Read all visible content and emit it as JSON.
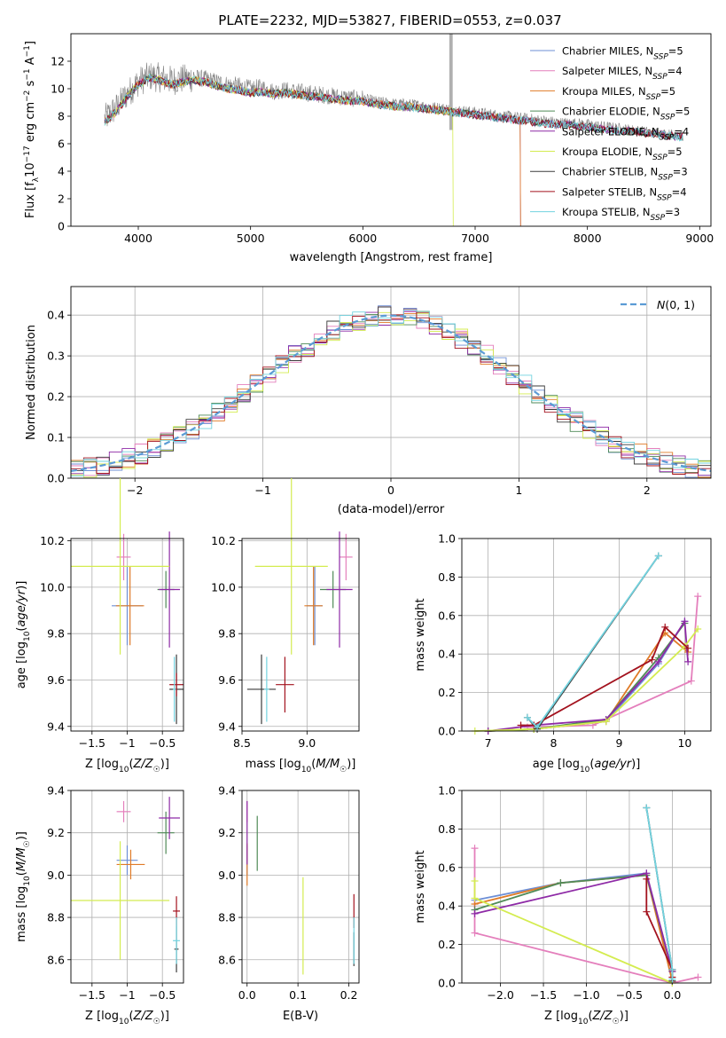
{
  "figure_title": "PLATE=2232, MJD=53827, FIBERID=0553, z=0.037",
  "colors": {
    "Chabrier MILES": "#6d8fd6",
    "Salpeter MILES": "#e47fbc",
    "Kroupa MILES": "#e07b27",
    "Chabrier ELODIE": "#4f8a57",
    "Salpeter ELODIE": "#8e2aa6",
    "Kroupa ELODIE": "#d4ec50",
    "Chabrier STELIB": "#3b3b3b",
    "Salpeter STELIB": "#a3121e",
    "Kroupa STELIB": "#72d3df",
    "data": "#808080",
    "normal_curve": "#5b9bd5"
  },
  "chart_data": [
    {
      "id": "spectrum",
      "type": "line",
      "title": "PLATE=2232, MJD=53827, FIBERID=0553, z=0.037",
      "xlabel": "wavelength [Angstrom, rest frame]",
      "ylabel": "Flux [f_λ 10^-17 erg cm^-2 s^-1 A^-1]",
      "xlim": [
        3400,
        9100
      ],
      "ylim": [
        0,
        14
      ],
      "xticks": [
        4000,
        5000,
        6000,
        7000,
        8000,
        9000
      ],
      "yticks": [
        0,
        2,
        4,
        6,
        8,
        10,
        12
      ],
      "grid": false,
      "legend_position": "right",
      "legend": [
        {
          "text": "Chabrier MILES, N_SSP=5",
          "main": "Chabrier MILES, N",
          "sub": "SSP",
          "tail": "=5"
        },
        {
          "text": "Salpeter MILES, N_SSP=4",
          "main": "Salpeter MILES, N",
          "sub": "SSP",
          "tail": "=4"
        },
        {
          "text": "Kroupa MILES, N_SSP=5",
          "main": "Kroupa MILES, N",
          "sub": "SSP",
          "tail": "=5"
        },
        {
          "text": "Chabrier ELODIE, N_SSP=5",
          "main": "Chabrier ELODIE, N",
          "sub": "SSP",
          "tail": "=5"
        },
        {
          "text": "Salpeter ELODIE, N_SSP=4",
          "main": "Salpeter ELODIE, N",
          "sub": "SSP",
          "tail": "=4"
        },
        {
          "text": "Kroupa ELODIE, N_SSP=5",
          "main": "Kroupa ELODIE, N",
          "sub": "SSP",
          "tail": "=5"
        },
        {
          "text": "Chabrier STELIB, N_SSP=3",
          "main": "Chabrier STELIB, N",
          "sub": "SSP",
          "tail": "=3"
        },
        {
          "text": "Salpeter STELIB, N_SSP=4",
          "main": "Salpeter STELIB, N",
          "sub": "SSP",
          "tail": "=4"
        },
        {
          "text": "Kroupa STELIB, N_SSP=3",
          "main": "Kroupa STELIB, N",
          "sub": "SSP",
          "tail": "=3"
        }
      ],
      "data_spectrum": {
        "x": [
          3700,
          3800,
          3900,
          4000,
          4100,
          4200,
          4300,
          4400,
          4500,
          4600,
          4700,
          4800,
          4900,
          5000,
          5100,
          5200,
          5300,
          5400,
          5500,
          5600,
          5700,
          5800,
          5900,
          6000,
          6100,
          6200,
          6300,
          6400,
          6500,
          6600,
          6700,
          6800,
          6900,
          7000,
          7100,
          7200,
          7300,
          7400,
          7500,
          7600,
          7700,
          7800,
          7900,
          8000,
          8100,
          8200,
          8300,
          8400,
          8500,
          8600,
          8700,
          8800
        ],
        "y": [
          7.8,
          8.6,
          9.6,
          10.5,
          10.9,
          10.8,
          10.6,
          10.7,
          10.8,
          10.7,
          10.5,
          10.3,
          10.2,
          10.0,
          10.1,
          9.8,
          9.9,
          9.8,
          9.7,
          9.6,
          9.5,
          9.4,
          9.3,
          9.3,
          9.1,
          9.0,
          8.9,
          8.9,
          8.8,
          8.7,
          8.6,
          8.5,
          8.4,
          8.3,
          8.2,
          8.1,
          8.0,
          7.9,
          7.8,
          7.7,
          7.6,
          7.5,
          7.5,
          7.4,
          7.3,
          7.2,
          7.1,
          7.0,
          6.9,
          6.8,
          6.7,
          6.6
        ]
      },
      "model_x": [
        3700,
        3800,
        3900,
        4000,
        4100,
        4200,
        4300,
        4400,
        4500,
        4600,
        4700,
        4800,
        4900,
        5000,
        5100,
        5200,
        5300,
        5400,
        5500,
        5600,
        5700,
        5800,
        5900,
        6000,
        6100,
        6200,
        6300,
        6400,
        6500,
        6600,
        6700,
        6800,
        6900,
        7000,
        7100,
        7200,
        7300,
        7400,
        7500,
        7600,
        7700,
        7800,
        7900,
        8000,
        8100,
        8200,
        8300,
        8400,
        8500,
        8600,
        8700,
        8800
      ],
      "model_y": [
        7.6,
        8.3,
        9.4,
        10.3,
        10.8,
        10.6,
        10.3,
        10.5,
        10.6,
        10.5,
        10.2,
        10.0,
        9.9,
        9.7,
        9.8,
        9.6,
        9.7,
        9.6,
        9.5,
        9.4,
        9.3,
        9.2,
        9.1,
        9.1,
        8.9,
        8.8,
        8.7,
        8.7,
        8.6,
        8.5,
        8.4,
        8.3,
        8.2,
        8.1,
        8.0,
        7.9,
        7.8,
        7.7,
        7.6,
        7.5,
        7.4,
        7.4,
        7.3,
        7.2,
        7.1,
        7.0,
        6.9,
        6.9,
        6.8,
        6.7,
        6.6,
        6.5
      ],
      "model_x_end": [
        7400,
        7400,
        7400,
        9000,
        8900,
        6800,
        9000,
        9000,
        9000
      ]
    },
    {
      "id": "residuals",
      "type": "histogram",
      "xlabel": "(data-model)/error",
      "ylabel": "Normed distribution",
      "xlim": [
        -2.5,
        2.5
      ],
      "ylim": [
        0,
        0.47
      ],
      "xticks": [
        -2,
        -1,
        0,
        1,
        2
      ],
      "yticks": [
        0.0,
        0.1,
        0.2,
        0.3,
        0.4
      ],
      "grid": true,
      "legend_position": "top-right",
      "legend": [
        {
          "text": "N(0,1)"
        }
      ],
      "bin_width": 0.1,
      "bin_start": -2.5
    },
    {
      "id": "age-vs-Z",
      "type": "scatter",
      "xlabel": "Z [log10(Z/Z☉)]",
      "ylabel": "age [log10(age/yr)]",
      "xlim": [
        -1.8,
        -0.2
      ],
      "ylim": [
        9.38,
        10.21
      ],
      "xticks": [
        -1.5,
        -1.0,
        -0.5
      ],
      "yticks": [
        9.4,
        9.6,
        9.8,
        10.0,
        10.2
      ],
      "grid": true,
      "points": [
        {
          "series": "Chabrier MILES",
          "x": -1.0,
          "y": 9.92,
          "xerr": 0.22,
          "yerr": 0.17
        },
        {
          "series": "Salpeter MILES",
          "x": -1.05,
          "y": 10.13,
          "xerr": 0.1,
          "yerr": 0.1
        },
        {
          "series": "Kroupa MILES",
          "x": -0.96,
          "y": 9.92,
          "xerr": 0.2,
          "yerr": 0.17
        },
        {
          "series": "Chabrier ELODIE",
          "x": -0.45,
          "y": 9.99,
          "xerr": 0.12,
          "yerr": 0.08
        },
        {
          "series": "Salpeter ELODIE",
          "x": -0.4,
          "y": 9.99,
          "xerr": 0.15,
          "yerr": 0.25
        },
        {
          "series": "Kroupa ELODIE",
          "x": -1.1,
          "y": 10.09,
          "xerr": 0.7,
          "yerr": 0.38
        },
        {
          "series": "Chabrier STELIB",
          "x": -0.3,
          "y": 9.56,
          "xerr": 0.1,
          "yerr": 0.15
        },
        {
          "series": "Salpeter STELIB",
          "x": -0.3,
          "y": 9.58,
          "xerr": 0.1,
          "yerr": 0.05
        },
        {
          "series": "Kroupa STELIB",
          "x": -0.33,
          "y": 9.56,
          "xerr": 0.02,
          "yerr": 0.14
        }
      ]
    },
    {
      "id": "age-vs-mass",
      "type": "scatter",
      "xlabel": "mass [log10(M/M☉)]",
      "ylabel": "",
      "xlim": [
        8.5,
        9.4
      ],
      "ylim": [
        9.38,
        10.21
      ],
      "xticks": [
        8.5,
        9.0
      ],
      "yticks": [
        9.4,
        9.6,
        9.8,
        10.0,
        10.2
      ],
      "grid": true,
      "points": [
        {
          "series": "Chabrier MILES",
          "x": 9.06,
          "y": 9.92,
          "xerr": 0.06,
          "yerr": 0.17
        },
        {
          "series": "Salpeter MILES",
          "x": 9.3,
          "y": 10.13,
          "xerr": 0.05,
          "yerr": 0.1
        },
        {
          "series": "Kroupa MILES",
          "x": 9.05,
          "y": 9.92,
          "xerr": 0.07,
          "yerr": 0.17
        },
        {
          "series": "Chabrier ELODIE",
          "x": 9.2,
          "y": 9.99,
          "xerr": 0.1,
          "yerr": 0.08
        },
        {
          "series": "Salpeter ELODIE",
          "x": 9.25,
          "y": 9.99,
          "xerr": 0.1,
          "yerr": 0.25
        },
        {
          "series": "Kroupa ELODIE",
          "x": 8.88,
          "y": 10.09,
          "xerr": 0.28,
          "yerr": 0.38
        },
        {
          "series": "Chabrier STELIB",
          "x": 8.65,
          "y": 9.56,
          "xerr": 0.11,
          "yerr": 0.15
        },
        {
          "series": "Salpeter STELIB",
          "x": 8.83,
          "y": 9.58,
          "xerr": 0.07,
          "yerr": 0.12
        },
        {
          "series": "Kroupa STELIB",
          "x": 8.69,
          "y": 9.56,
          "xerr": 0.02,
          "yerr": 0.14
        }
      ]
    },
    {
      "id": "weight-vs-age",
      "type": "line",
      "xlabel": "age [log10(age/yr)]",
      "ylabel": "mass weight",
      "xlim": [
        6.6,
        10.4
      ],
      "ylim": [
        0,
        1
      ],
      "xticks": [
        7,
        8,
        9,
        10
      ],
      "yticks": [
        0.0,
        0.2,
        0.4,
        0.6,
        0.8,
        1.0
      ],
      "grid": true,
      "series": [
        {
          "name": "Chabrier MILES",
          "x": [
            7.0,
            7.7,
            8.8,
            9.6,
            10.0
          ],
          "y": [
            0.0,
            0.01,
            0.05,
            0.35,
            0.57
          ]
        },
        {
          "name": "Salpeter MILES",
          "x": [
            7.6,
            8.6,
            10.1,
            10.2
          ],
          "y": [
            0.02,
            0.03,
            0.26,
            0.7
          ]
        },
        {
          "name": "Kroupa MILES",
          "x": [
            7.0,
            7.7,
            8.8,
            9.7,
            10.05
          ],
          "y": [
            0.0,
            0.01,
            0.05,
            0.51,
            0.41
          ]
        },
        {
          "name": "Chabrier ELODIE",
          "x": [
            7.0,
            7.7,
            8.8,
            9.6,
            10.0
          ],
          "y": [
            0.0,
            0.01,
            0.06,
            0.38,
            0.56
          ]
        },
        {
          "name": "Salpeter ELODIE",
          "x": [
            7.0,
            7.7,
            8.8,
            9.6,
            10.0,
            10.05
          ],
          "y": [
            0.0,
            0.03,
            0.06,
            0.36,
            0.57,
            0.36
          ]
        },
        {
          "name": "Kroupa ELODIE",
          "x": [
            6.8,
            7.7,
            8.8,
            10.0,
            10.2
          ],
          "y": [
            0.0,
            0.01,
            0.05,
            0.44,
            0.53
          ]
        },
        {
          "name": "Chabrier STELIB",
          "x": [
            7.6,
            7.75,
            9.6
          ],
          "y": [
            0.07,
            0.01,
            0.91
          ]
        },
        {
          "name": "Salpeter STELIB",
          "x": [
            7.5,
            7.7,
            9.5,
            9.7,
            10.05
          ],
          "y": [
            0.03,
            0.03,
            0.37,
            0.54,
            0.43
          ]
        },
        {
          "name": "Kroupa STELIB",
          "x": [
            7.6,
            7.75,
            9.6
          ],
          "y": [
            0.07,
            0.02,
            0.91
          ]
        }
      ]
    },
    {
      "id": "mass-vs-Z",
      "type": "scatter",
      "xlabel": "Z [log10(Z/Z☉)]",
      "ylabel": "mass [log10(M/M☉)]",
      "xlim": [
        -1.8,
        -0.2
      ],
      "ylim": [
        8.49,
        9.4
      ],
      "xticks": [
        -1.5,
        -1.0,
        -0.5
      ],
      "yticks": [
        8.6,
        8.8,
        9.0,
        9.2,
        9.4
      ],
      "grid": true,
      "points": [
        {
          "series": "Chabrier MILES",
          "x": -1.0,
          "y": 9.07,
          "xerr": 0.15,
          "yerr": 0.07
        },
        {
          "series": "Salpeter MILES",
          "x": -1.05,
          "y": 9.3,
          "xerr": 0.1,
          "yerr": 0.05
        },
        {
          "series": "Kroupa MILES",
          "x": -0.95,
          "y": 9.05,
          "xerr": 0.2,
          "yerr": 0.07
        },
        {
          "series": "Chabrier ELODIE",
          "x": -0.45,
          "y": 9.2,
          "xerr": 0.12,
          "yerr": 0.1
        },
        {
          "series": "Salpeter ELODIE",
          "x": -0.4,
          "y": 9.27,
          "xerr": 0.15,
          "yerr": 0.1
        },
        {
          "series": "Kroupa ELODIE",
          "x": -1.1,
          "y": 8.88,
          "xerr": 0.7,
          "yerr": 0.28
        },
        {
          "series": "Chabrier STELIB",
          "x": -0.3,
          "y": 8.65,
          "xerr": 0.03,
          "yerr": 0.11
        },
        {
          "series": "Salpeter STELIB",
          "x": -0.3,
          "y": 8.83,
          "xerr": 0.05,
          "yerr": 0.07
        },
        {
          "series": "Kroupa STELIB",
          "x": -0.3,
          "y": 8.69,
          "xerr": 0.05,
          "yerr": 0.11
        }
      ]
    },
    {
      "id": "mass-vs-ebv",
      "type": "scatter",
      "xlabel": "E(B-V)",
      "ylabel": "",
      "xlim": [
        -0.01,
        0.22
      ],
      "ylim": [
        8.49,
        9.4
      ],
      "xticks": [
        0.0,
        0.1,
        0.2
      ],
      "yticks": [
        8.6,
        8.8,
        9.0,
        9.2,
        9.4
      ],
      "grid": true,
      "points": [
        {
          "series": "Chabrier MILES",
          "x": 0.0,
          "y": 9.07,
          "xerr": 0.0,
          "yerr": 0.07
        },
        {
          "series": "Salpeter MILES",
          "x": 0.0,
          "y": 9.3,
          "xerr": 0.0,
          "yerr": 0.05
        },
        {
          "series": "Kroupa MILES",
          "x": 0.0,
          "y": 9.05,
          "xerr": 0.0,
          "yerr": 0.1
        },
        {
          "series": "Chabrier ELODIE",
          "x": 0.02,
          "y": 9.15,
          "xerr": 0.0,
          "yerr": 0.13
        },
        {
          "series": "Salpeter ELODIE",
          "x": 0.0,
          "y": 9.2,
          "xerr": 0.0,
          "yerr": 0.15
        },
        {
          "series": "Kroupa ELODIE",
          "x": 0.11,
          "y": 8.76,
          "xerr": 0.0,
          "yerr": 0.23
        },
        {
          "series": "Chabrier STELIB",
          "x": 0.21,
          "y": 8.65,
          "xerr": 0.0,
          "yerr": 0.08
        },
        {
          "series": "Salpeter STELIB",
          "x": 0.21,
          "y": 8.83,
          "xerr": 0.0,
          "yerr": 0.08
        },
        {
          "series": "Kroupa STELIB",
          "x": 0.21,
          "y": 8.69,
          "xerr": 0.0,
          "yerr": 0.11
        }
      ]
    },
    {
      "id": "weight-vs-Z",
      "type": "line",
      "xlabel": "Z [log10(Z/Z☉)]",
      "ylabel": "mass weight",
      "xlim": [
        -2.45,
        0.45
      ],
      "ylim": [
        0,
        1
      ],
      "xticks": [
        -2.0,
        -1.5,
        -1.0,
        -0.5,
        0.0
      ],
      "yticks": [
        0.0,
        0.2,
        0.4,
        0.6,
        0.8,
        1.0
      ],
      "grid": true,
      "series": [
        {
          "name": "Chabrier MILES",
          "x": [
            -2.3,
            -1.3,
            -0.3,
            0.0
          ],
          "y": [
            0.43,
            0.52,
            0.57,
            0.01
          ]
        },
        {
          "name": "Salpeter MILES",
          "x": [
            -2.3,
            -2.3,
            0.0,
            0.3
          ],
          "y": [
            0.7,
            0.26,
            0.0,
            0.03
          ]
        },
        {
          "name": "Kroupa MILES",
          "x": [
            -2.3,
            -1.3,
            -0.3,
            0.0
          ],
          "y": [
            0.41,
            0.52,
            0.56,
            0.01
          ]
        },
        {
          "name": "Chabrier ELODIE",
          "x": [
            -2.3,
            -1.3,
            -0.3,
            0.0
          ],
          "y": [
            0.38,
            0.52,
            0.56,
            0.06
          ]
        },
        {
          "name": "Salpeter ELODIE",
          "x": [
            -2.3,
            -0.3,
            0.0
          ],
          "y": [
            0.36,
            0.57,
            0.06
          ]
        },
        {
          "name": "Kroupa ELODIE",
          "x": [
            -2.3,
            -2.3,
            0.0
          ],
          "y": [
            0.53,
            0.44,
            0.0
          ]
        },
        {
          "name": "Chabrier STELIB",
          "x": [
            -0.3,
            0.0,
            0.0
          ],
          "y": [
            0.91,
            0.07,
            0.01
          ]
        },
        {
          "name": "Salpeter STELIB",
          "x": [
            -0.3,
            -0.3,
            0.0,
            0.0
          ],
          "y": [
            0.54,
            0.37,
            0.07,
            0.03
          ]
        },
        {
          "name": "Kroupa STELIB",
          "x": [
            -0.3,
            0.0,
            0.0
          ],
          "y": [
            0.91,
            0.07,
            0.02
          ]
        }
      ]
    }
  ]
}
